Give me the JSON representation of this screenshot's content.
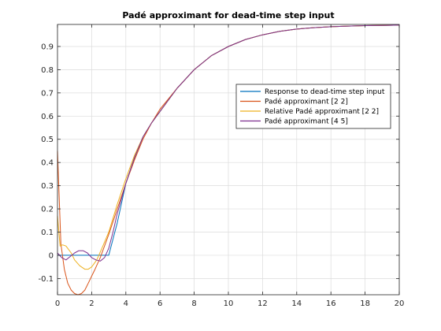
{
  "chart_data": {
    "type": "line",
    "title": "Padé approximant for dead-time step input",
    "xlabel": "",
    "ylabel": "",
    "xlim": [
      0,
      20
    ],
    "ylim": [
      -0.17,
      0.995
    ],
    "grid": true,
    "legend_position": "right",
    "x_ticks": [
      0,
      2,
      4,
      6,
      8,
      10,
      12,
      14,
      16,
      18,
      20
    ],
    "y_ticks": [
      -0.1,
      0,
      0.1,
      0.2,
      0.3,
      0.4,
      0.5,
      0.6,
      0.7,
      0.8,
      0.9
    ],
    "x_tick_labels": [
      "0",
      "2",
      "4",
      "6",
      "8",
      "10",
      "12",
      "14",
      "16",
      "18",
      "20"
    ],
    "y_tick_labels": [
      "-0.1",
      "0",
      "0.1",
      "0.2",
      "0.3",
      "0.4",
      "0.5",
      "0.6",
      "0.7",
      "0.8",
      "0.9"
    ],
    "series": [
      {
        "name": "Response to dead-time step input",
        "color": "#0072BD",
        "x": [
          0,
          0.5,
          1,
          1.5,
          2,
          2.5,
          3,
          3.5,
          4,
          4.5,
          5,
          5.5,
          6,
          7,
          8,
          9,
          10,
          11,
          12,
          13,
          14,
          15,
          16,
          17,
          18,
          19,
          20
        ],
        "y": [
          0,
          0,
          0,
          0,
          0,
          0,
          0,
          0.14,
          0.31,
          0.42,
          0.51,
          0.57,
          0.62,
          0.72,
          0.8,
          0.86,
          0.9,
          0.93,
          0.95,
          0.965,
          0.975,
          0.981,
          0.985,
          0.988,
          0.99,
          0.991,
          0.992
        ]
      },
      {
        "name": "Padé approximant [2 2]",
        "color": "#D95319",
        "x": [
          0,
          0.2,
          0.4,
          0.6,
          0.8,
          1,
          1.2,
          1.4,
          1.6,
          1.8,
          2,
          2.2,
          2.5,
          3,
          3.5,
          4,
          4.5,
          5,
          5.5,
          6,
          7,
          8,
          9,
          10,
          11,
          12,
          13,
          14,
          15,
          16,
          17,
          18,
          19,
          20
        ],
        "y": [
          0.45,
          0.05,
          -0.06,
          -0.12,
          -0.15,
          -0.165,
          -0.17,
          -0.165,
          -0.15,
          -0.12,
          -0.09,
          -0.06,
          -0.01,
          0.09,
          0.2,
          0.31,
          0.41,
          0.5,
          0.57,
          0.63,
          0.72,
          0.8,
          0.86,
          0.9,
          0.93,
          0.95,
          0.965,
          0.975,
          0.981,
          0.985,
          0.988,
          0.99,
          0.991,
          0.992
        ]
      },
      {
        "name": "Relative Padé approximant [2 2]",
        "color": "#EDB120",
        "x": [
          0,
          0.15,
          0.3,
          0.5,
          0.8,
          1,
          1.3,
          1.6,
          1.8,
          2,
          2.3,
          2.6,
          3,
          3.5,
          4,
          4.5,
          5,
          5.5,
          6,
          7,
          8,
          9,
          10,
          11,
          12,
          13,
          14,
          15,
          16,
          17,
          18,
          19,
          20
        ],
        "y": [
          0.17,
          0.04,
          0.045,
          0.04,
          0.01,
          -0.02,
          -0.045,
          -0.06,
          -0.06,
          -0.05,
          -0.02,
          0.03,
          0.1,
          0.22,
          0.33,
          0.43,
          0.51,
          0.57,
          0.62,
          0.72,
          0.8,
          0.86,
          0.9,
          0.93,
          0.95,
          0.965,
          0.975,
          0.981,
          0.985,
          0.988,
          0.99,
          0.991,
          0.992
        ]
      },
      {
        "name": "Padé approximant [4 5]",
        "color": "#7E2F8E",
        "x": [
          0,
          0.25,
          0.5,
          0.75,
          1,
          1.25,
          1.5,
          1.75,
          2,
          2.25,
          2.5,
          2.75,
          3,
          3.25,
          3.5,
          4,
          4.5,
          5,
          5.5,
          6,
          7,
          8,
          9,
          10,
          11,
          12,
          13,
          14,
          15,
          16,
          17,
          18,
          19,
          20
        ],
        "y": [
          0.01,
          -0.01,
          -0.02,
          -0.005,
          0.01,
          0.02,
          0.02,
          0.01,
          -0.01,
          -0.02,
          -0.025,
          -0.01,
          0.03,
          0.1,
          0.18,
          0.31,
          0.42,
          0.51,
          0.57,
          0.62,
          0.72,
          0.8,
          0.86,
          0.9,
          0.93,
          0.95,
          0.965,
          0.975,
          0.981,
          0.985,
          0.988,
          0.99,
          0.991,
          0.992
        ]
      }
    ]
  }
}
